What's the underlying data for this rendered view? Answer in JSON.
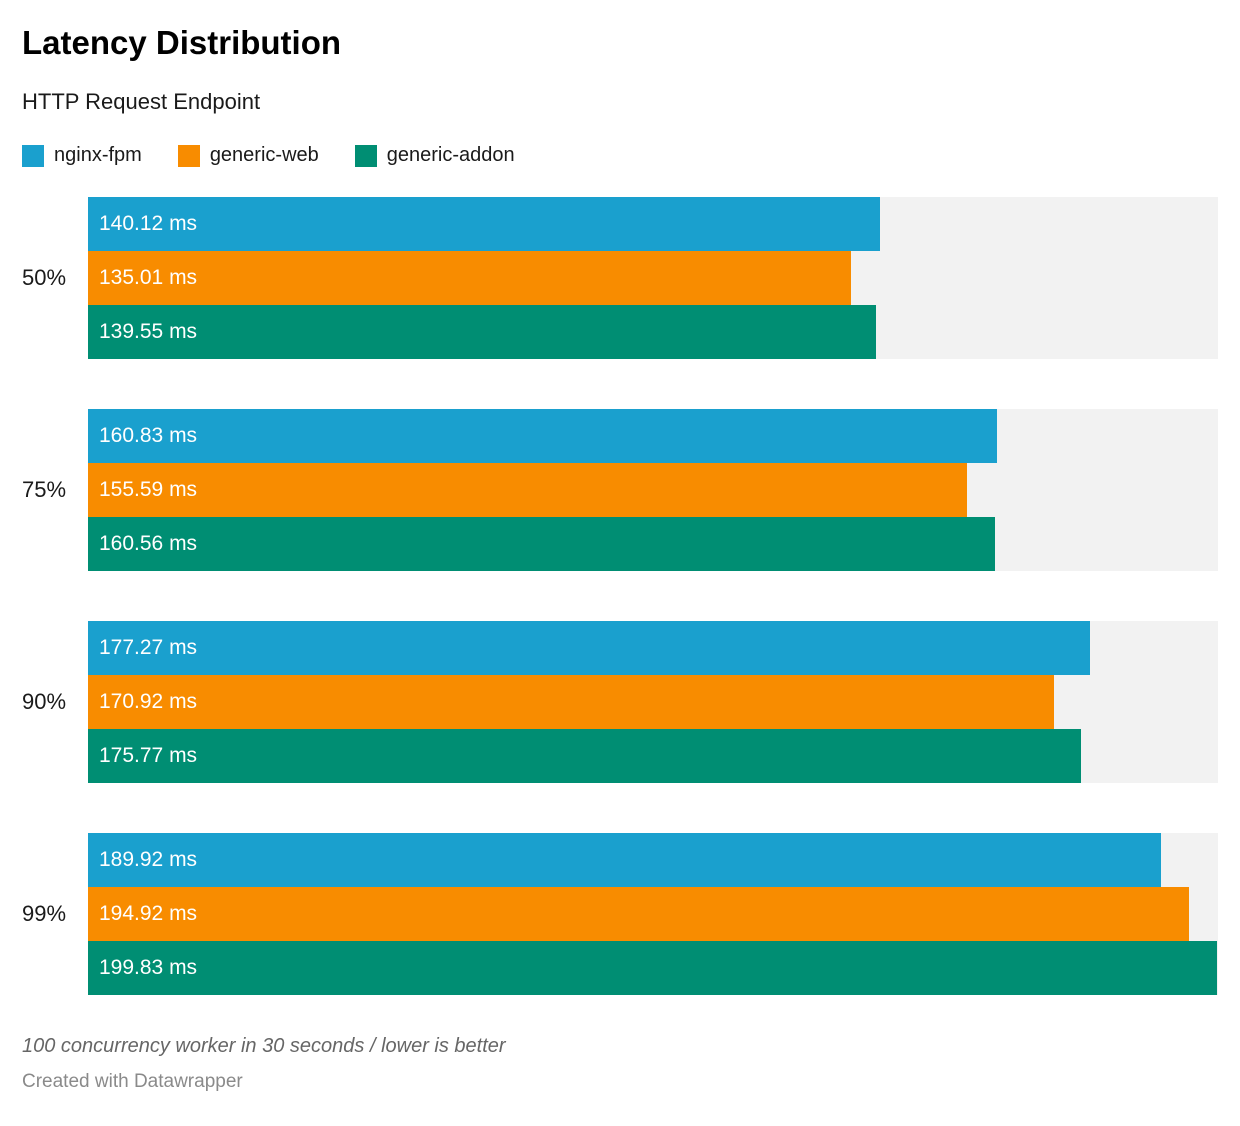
{
  "header": {
    "title": "Latency Distribution",
    "subtitle": "HTTP Request Endpoint"
  },
  "chart_data": {
    "type": "bar",
    "orientation": "horizontal",
    "title": "Latency Distribution",
    "subtitle": "HTTP Request Endpoint",
    "categories": [
      "50%",
      "75%",
      "90%",
      "99%"
    ],
    "series": [
      {
        "name": "nginx-fpm",
        "color": "#1aa0ce",
        "values": [
          140.12,
          160.83,
          177.27,
          189.92
        ]
      },
      {
        "name": "generic-web",
        "color": "#f88c00",
        "values": [
          135.01,
          155.59,
          170.92,
          194.92
        ]
      },
      {
        "name": "generic-addon",
        "color": "#008e73",
        "values": [
          139.55,
          160.56,
          175.77,
          199.83
        ]
      }
    ],
    "unit": "ms",
    "xlim": [
      0,
      200
    ],
    "grid": false,
    "legend_position": "top",
    "track_color": "#f2f2f2",
    "bar_label_color": "#ffffff"
  },
  "footer": {
    "note": "100 concurrency worker in 30 seconds / lower is better",
    "attribution": "Created with Datawrapper"
  }
}
